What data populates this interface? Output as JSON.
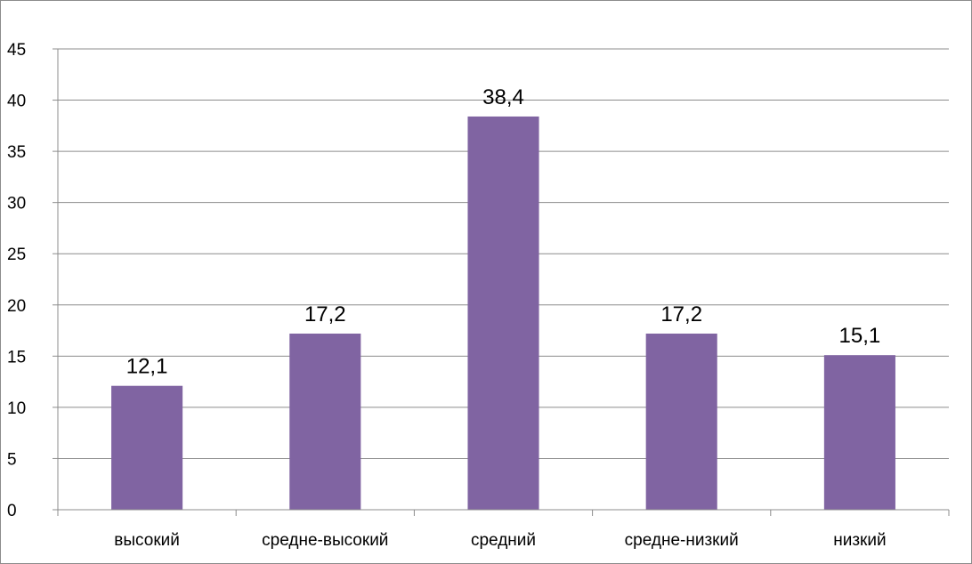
{
  "chart_data": {
    "type": "bar",
    "title": "",
    "xlabel": "",
    "ylabel": "",
    "categories": [
      "высокий",
      "средне-высокий",
      "средний",
      "средне-низкий",
      "низкий"
    ],
    "values": [
      12.1,
      17.2,
      38.4,
      17.2,
      15.1
    ],
    "data_labels": [
      "12,1",
      "17,2",
      "38,4",
      "17,2",
      "15,1"
    ],
    "ylim": [
      0,
      45
    ],
    "yticks": [
      0,
      5,
      10,
      15,
      20,
      25,
      30,
      35,
      40,
      45
    ],
    "grid": true,
    "legend": "none",
    "bar_color": "#8064a2",
    "grid_color": "#8c8c8c"
  }
}
